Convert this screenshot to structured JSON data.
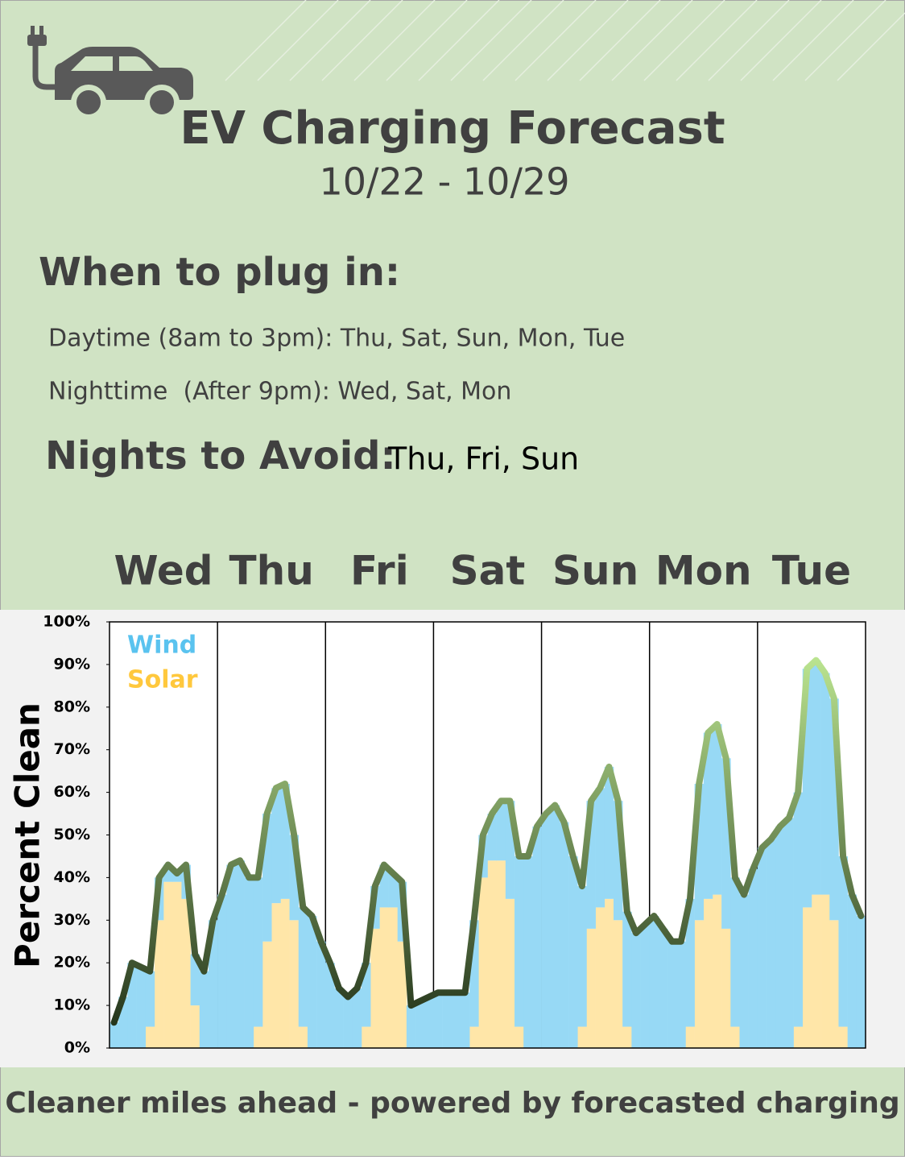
{
  "header": {
    "title": "EV Charging Forecast",
    "date_range": "10/22 - 10/29"
  },
  "plug_in": {
    "heading": "When to plug in:",
    "items": [
      "Daytime (8am to 3pm): Thu, Sat, Sun, Mon, Tue",
      "Nighttime  (After 9pm): Wed, Sat, Mon"
    ]
  },
  "avoid": {
    "heading": "Nights to Avoid:",
    "days": "Thu, Fri, Sun"
  },
  "chart_data": {
    "type": "stacked_bar",
    "days": [
      "Wed",
      "Thu",
      "Fri",
      "Sat",
      "Sun",
      "Mon",
      "Tue"
    ],
    "y_label": "Percent Clean",
    "ylim": [
      0,
      100
    ],
    "yticks": [
      {
        "value": 0,
        "label": "0%"
      },
      {
        "value": 10,
        "label": "10%"
      },
      {
        "value": 20,
        "label": "20%"
      },
      {
        "value": 30,
        "label": "30%"
      },
      {
        "value": 40,
        "label": "40%"
      },
      {
        "value": 50,
        "label": "50%"
      },
      {
        "value": 60,
        "label": "60%"
      },
      {
        "value": 70,
        "label": "70%"
      },
      {
        "value": 80,
        "label": "80%"
      },
      {
        "value": 90,
        "label": "90%"
      },
      {
        "value": 100,
        "label": "100%"
      }
    ],
    "series": [
      {
        "name": "Solar",
        "color": "#ffe6a8",
        "legend_color": "#ffc83d",
        "values": [
          0,
          0,
          0,
          0,
          5,
          30,
          39,
          39,
          35,
          10,
          0,
          0,
          0,
          0,
          0,
          0,
          5,
          25,
          34,
          35,
          30,
          5,
          0,
          0,
          0,
          0,
          0,
          0,
          5,
          28,
          33,
          33,
          25,
          0,
          0,
          0,
          0,
          0,
          0,
          0,
          5,
          40,
          44,
          44,
          35,
          5,
          0,
          0,
          0,
          0,
          0,
          0,
          5,
          28,
          33,
          35,
          30,
          5,
          0,
          0,
          0,
          0,
          0,
          0,
          5,
          30,
          35,
          36,
          28,
          5,
          0,
          0,
          0,
          0,
          0,
          0,
          5,
          33,
          36,
          36,
          30,
          5,
          0,
          0
        ]
      },
      {
        "name": "Wind",
        "color": "#97d9f5",
        "legend_color": "#5ac3ef",
        "values": [
          6,
          12,
          20,
          19,
          13,
          10,
          4,
          2,
          8,
          12,
          18,
          30,
          36,
          43,
          44,
          40,
          35,
          30,
          27,
          27,
          20,
          28,
          31,
          25,
          20,
          14,
          12,
          14,
          15,
          10,
          10,
          8,
          14,
          10,
          11,
          12,
          13,
          13,
          13,
          13,
          25,
          10,
          11,
          14,
          23,
          40,
          45,
          52,
          55,
          57,
          53,
          45,
          33,
          30,
          28,
          31,
          28,
          27,
          27,
          29,
          31,
          28,
          25,
          25,
          30,
          32,
          39,
          40,
          40,
          35,
          36,
          42,
          47,
          49,
          52,
          54,
          55,
          56,
          55,
          52,
          52,
          40,
          36,
          31
        ]
      }
    ],
    "line_colors": [
      "#1c2b15",
      "#c9f59b"
    ]
  },
  "footer": "Cleaner miles ahead - powered by forecasted charging"
}
